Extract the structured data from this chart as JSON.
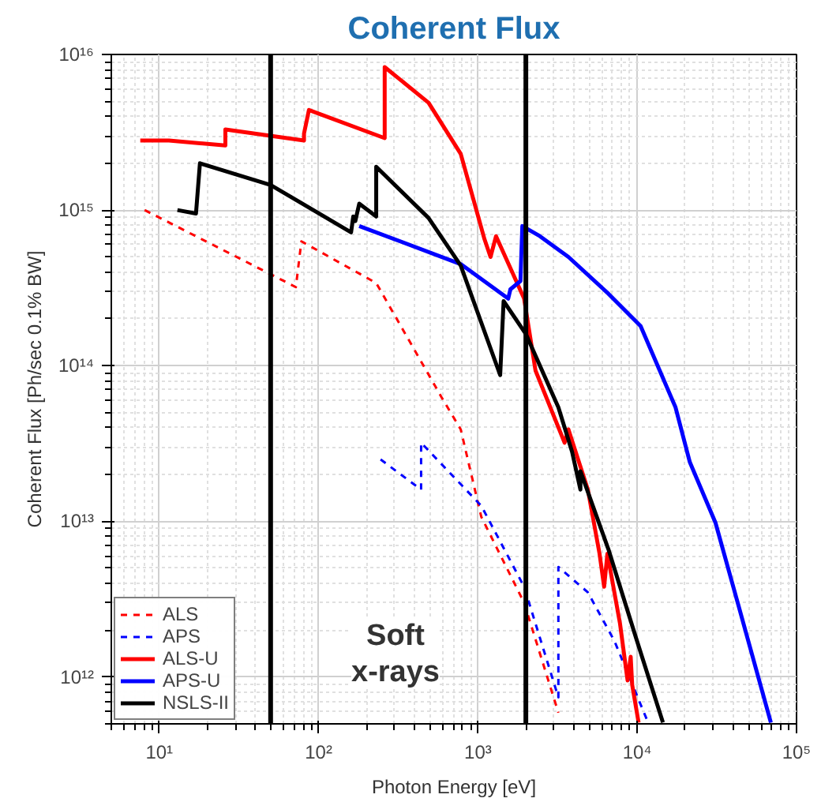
{
  "chart_data": {
    "type": "line",
    "title": "Coherent Flux",
    "xlabel": "Photon Energy [eV]",
    "ylabel": "Coherent Flux [Ph/sec 0.1% BW]",
    "log": "xy",
    "grid": true,
    "legend": "bottom left",
    "xlim": [
      5,
      100000
    ],
    "ylim": [
      500000000000.0,
      1e+16
    ],
    "xticks": [
      {
        "value": 10,
        "label": "10¹"
      },
      {
        "value": 100,
        "label": "10²"
      },
      {
        "value": 1000,
        "label": "10³"
      },
      {
        "value": 10000,
        "label": "10⁴"
      },
      {
        "value": 100000,
        "label": "10⁵"
      }
    ],
    "yticks": [
      {
        "value": 1000000000000.0,
        "label": "10¹²"
      },
      {
        "value": 10000000000000.0,
        "label": "10¹³"
      },
      {
        "value": 100000000000000.0,
        "label": "10¹⁴"
      },
      {
        "value": 1000000000000000.0,
        "label": "10¹⁵"
      },
      {
        "value": 1e+16,
        "label": "10¹⁶"
      }
    ],
    "series": [
      {
        "name": "ALS",
        "color": "#ff0000",
        "line_style": "dashed",
        "x": [
          8.1,
          72,
          78,
          230,
          590,
          780,
          1050,
          1950,
          3200
        ],
        "values": [
          1000000000000000.0,
          320000000000000.0,
          630000000000000.0,
          340000000000000.0,
          63000000000000.0,
          39000000000000.0,
          10700000000000.0,
          3000000000000.0,
          590000000000.0
        ]
      },
      {
        "name": "APS",
        "color": "#0000ff",
        "line_style": "dashed",
        "x": [
          245,
          440,
          440,
          1050,
          1950,
          3200,
          3200,
          4900,
          7200,
          11700
        ],
        "values": [
          25000000000000.0,
          16000000000000.0,
          32000000000000.0,
          12600000000000.0,
          3800000000000.0,
          740000000000.0,
          5100000000000.0,
          3500000000000.0,
          1700000000000.0,
          510000000000.0
        ]
      },
      {
        "name": "ALS-U",
        "color": "#ff0000",
        "line_style": "solid",
        "x": [
          7.6,
          11.5,
          26,
          26,
          81,
          81,
          87,
          260,
          260,
          490,
          780,
          1100,
          1200,
          1300,
          1950,
          2300,
          3500,
          3700,
          4900,
          5800,
          6200,
          6500,
          7800,
          8700,
          9100,
          9300,
          10200
        ],
        "values": [
          2800000000000000.0,
          2800000000000000.0,
          2600000000000000.0,
          3300000000000000.0,
          2800000000000000.0,
          3100000000000000.0,
          4400000000000000.0,
          2900000000000000.0,
          8300000000000000.0,
          4900000000000000.0,
          2300000000000000.0,
          650000000000000.0,
          500000000000000.0,
          680000000000000.0,
          270000000000000.0,
          93000000000000.0,
          32000000000000.0,
          39000000000000.0,
          16000000000000.0,
          6200000000000.0,
          3800000000000.0,
          6200000000000.0,
          2200000000000.0,
          950000000000.0,
          1350000000000.0,
          890000000000.0,
          510000000000.0
        ]
      },
      {
        "name": "APS-U",
        "color": "#0000ff",
        "line_style": "solid",
        "x": [
          180,
          780,
          1550,
          1600,
          1850,
          1900,
          2450,
          3700,
          6600,
          10500,
          17400,
          21400,
          31000,
          42000,
          69000
        ],
        "values": [
          790000000000000.0,
          450000000000000.0,
          270000000000000.0,
          310000000000000.0,
          350000000000000.0,
          790000000000000.0,
          680000000000000.0,
          500000000000000.0,
          290000000000000.0,
          180000000000000.0,
          54000000000000.0,
          24000000000000.0,
          9800000000000.0,
          3200000000000.0,
          510000000000.0
        ]
      },
      {
        "name": "NSLS-II",
        "color": "#000000",
        "line_style": "solid",
        "x": [
          13,
          17,
          18,
          50,
          160,
          165,
          170,
          180,
          230,
          230,
          490,
          780,
          1380,
          1450,
          2000,
          3200,
          3900,
          4400,
          4400,
          6600,
          9800,
          14500
        ],
        "values": [
          1000000000000000.0,
          950000000000000.0,
          2000000000000000.0,
          1450000000000000.0,
          720000000000000.0,
          910000000000000.0,
          850000000000000.0,
          1100000000000000.0,
          910000000000000.0,
          1900000000000000.0,
          890000000000000.0,
          440000000000000.0,
          87000000000000.0,
          260000000000000.0,
          160000000000000.0,
          54000000000000.0,
          28000000000000.0,
          16000000000000.0,
          21000000000000.0,
          6600000000000.0,
          1800000000000.0,
          510000000000.0
        ]
      }
    ],
    "ref_lines": [
      {
        "axis": "x",
        "value": 50,
        "color": "#000000"
      },
      {
        "axis": "x",
        "value": 2000,
        "color": "#000000"
      }
    ],
    "annotations": [
      "Soft\nx-rays"
    ]
  }
}
